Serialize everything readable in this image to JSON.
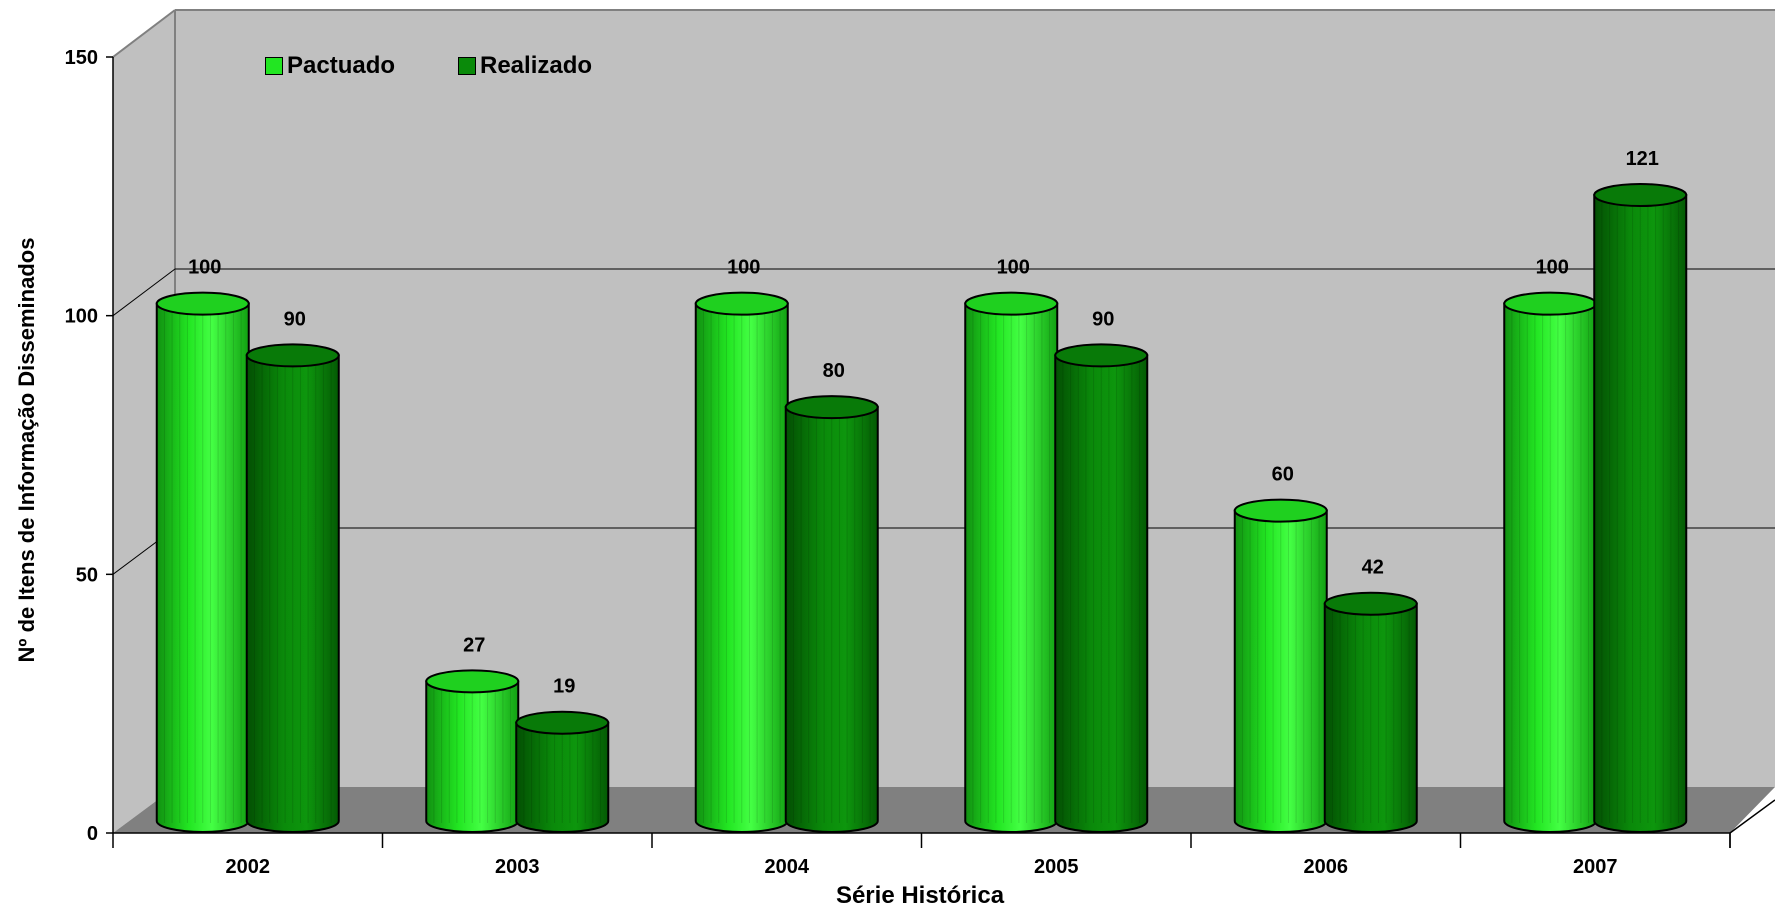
{
  "chart_data": {
    "type": "bar",
    "categories": [
      "2002",
      "2003",
      "2004",
      "2005",
      "2006",
      "2007"
    ],
    "series": [
      {
        "name": "Pactuado",
        "values": [
          100,
          27,
          100,
          100,
          60,
          100
        ],
        "color": "#22e622"
      },
      {
        "name": "Realizado",
        "values": [
          90,
          19,
          80,
          90,
          42,
          121
        ],
        "color": "#0a8a0a"
      }
    ],
    "data_labels": [
      [
        "100",
        "27",
        "100",
        "100",
        "60",
        "100"
      ],
      [
        "90",
        "19",
        "80",
        "90",
        "42",
        "121"
      ]
    ],
    "yticks": [
      "0",
      "50",
      "100",
      "150"
    ],
    "ylim": [
      0,
      150
    ],
    "xlabel": "Série Histórica",
    "ylabel": "Nº de Itens de Informação Disseminados",
    "legend_position": "top-left",
    "grid": true,
    "style": "3d-cylinder"
  }
}
